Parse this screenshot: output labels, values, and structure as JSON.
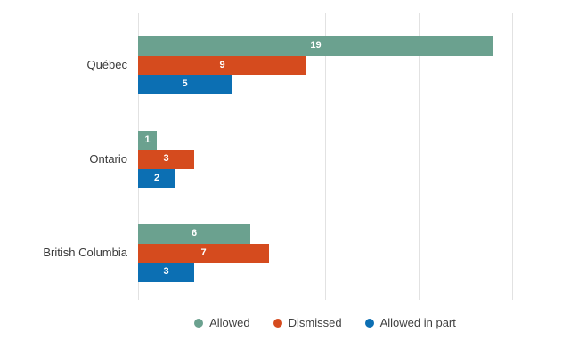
{
  "chart_data": {
    "type": "bar",
    "orientation": "horizontal",
    "title": "",
    "xlabel": "",
    "ylabel": "",
    "categories": [
      "Québec",
      "Ontario",
      "British Columbia"
    ],
    "series": [
      {
        "name": "Allowed",
        "color": "#6BA18F",
        "values": [
          19,
          1,
          6
        ]
      },
      {
        "name": "Dismissed",
        "color": "#D54B1E",
        "values": [
          9,
          3,
          7
        ]
      },
      {
        "name": "Allowed in part",
        "color": "#0C6FB3",
        "values": [
          5,
          2,
          3
        ]
      }
    ],
    "xlim": [
      0,
      20
    ],
    "gridlines": [
      0,
      5,
      10,
      15,
      20
    ],
    "grid": true,
    "legend_position": "bottom",
    "value_labels": "inside-center",
    "value_label_color": "#ffffff",
    "gridline_color": "#e2e2e2",
    "category_label_color": "#3a3a3a",
    "legend_text_color": "#404040",
    "background_color": "#ffffff"
  }
}
